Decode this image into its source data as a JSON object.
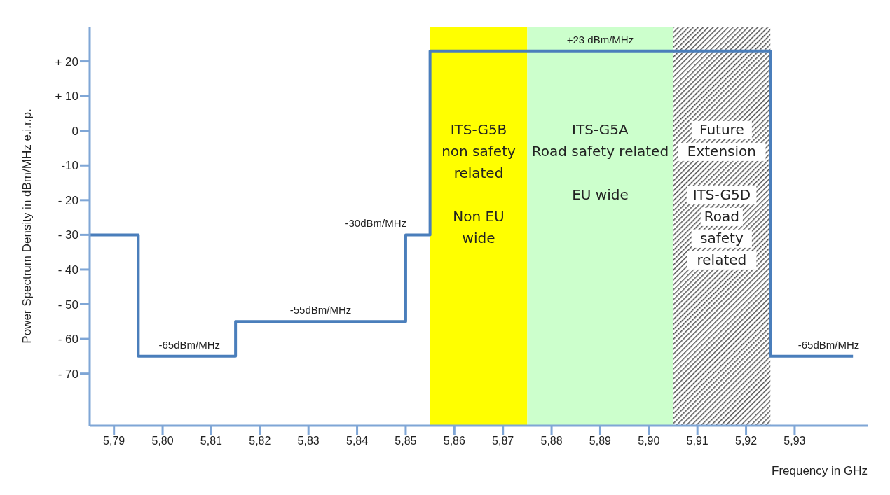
{
  "chart_data": {
    "type": "step",
    "xlabel": "Frequency in GHz",
    "ylabel": "Power Spectrum Density  in dBm/MHz e.i.r.p.",
    "x": [
      5.785,
      5.795,
      5.815,
      5.85,
      5.855,
      5.925,
      5.942
    ],
    "series": [
      {
        "color": "#4a7ebb",
        "values": [
          -30,
          -65,
          -55,
          -30,
          23,
          -65,
          -65
        ]
      }
    ],
    "xlim": [
      5.785,
      5.945
    ],
    "ylim": [
      -85,
      30
    ],
    "xticks": [
      {
        "value": 5.79,
        "label": "5,79"
      },
      {
        "value": 5.8,
        "label": "5,80"
      },
      {
        "value": 5.81,
        "label": "5,81"
      },
      {
        "value": 5.82,
        "label": "5,82"
      },
      {
        "value": 5.83,
        "label": "5,83"
      },
      {
        "value": 5.84,
        "label": "5,84"
      },
      {
        "value": 5.85,
        "label": "5,85"
      },
      {
        "value": 5.86,
        "label": "5,86"
      },
      {
        "value": 5.87,
        "label": "5,87"
      },
      {
        "value": 5.88,
        "label": "5,88"
      },
      {
        "value": 5.89,
        "label": "5,89"
      },
      {
        "value": 5.9,
        "label": "5,90"
      },
      {
        "value": 5.91,
        "label": "5,91"
      },
      {
        "value": 5.92,
        "label": "5,92"
      },
      {
        "value": 5.93,
        "label": "5,93"
      }
    ],
    "yticks": [
      {
        "value": 20,
        "label": "+ 20"
      },
      {
        "value": 10,
        "label": "+ 10"
      },
      0,
      -10,
      {
        "value": -20,
        "label": "- 20"
      },
      {
        "value": -30,
        "label": "- 30"
      },
      {
        "value": -40,
        "label": "- 40"
      },
      {
        "value": -50,
        "label": "- 50"
      },
      {
        "value": -60,
        "label": "-  60"
      },
      {
        "value": -70,
        "label": "- 70"
      }
    ],
    "bands": [
      {
        "axis": "x",
        "from": 5.855,
        "to": 5.875,
        "label": "ITS-G5B\nnon safety\nrelated\n\nNon EU\nwide",
        "color": "#ffff00"
      },
      {
        "axis": "x",
        "from": 5.875,
        "to": 5.905,
        "label": "ITS-G5A\nRoad safety related\n\nEU wide",
        "color": "#ccffcc"
      },
      {
        "axis": "x",
        "from": 5.905,
        "to": 5.925,
        "label": "Future\nExtension\n\nITS-G5D\nRoad\nsafety\nrelated",
        "color": "#555555"
      }
    ],
    "annotations": [
      {
        "text": "-65dBm/MHz",
        "x": 5.8055,
        "y": -65
      },
      {
        "text": "-55dBm/MHz",
        "x": 5.8325,
        "y": -55
      },
      {
        "text": "-30dBm/MHz",
        "x": 5.8525,
        "y": -30
      },
      {
        "text": "+23 dBm/MHz",
        "x": 5.89,
        "y": 23
      },
      {
        "text": "-65dBm/MHz",
        "x": 5.937,
        "y": -65
      }
    ],
    "grid": false,
    "legend": false,
    "marker": "none",
    "line_style": "solid"
  }
}
